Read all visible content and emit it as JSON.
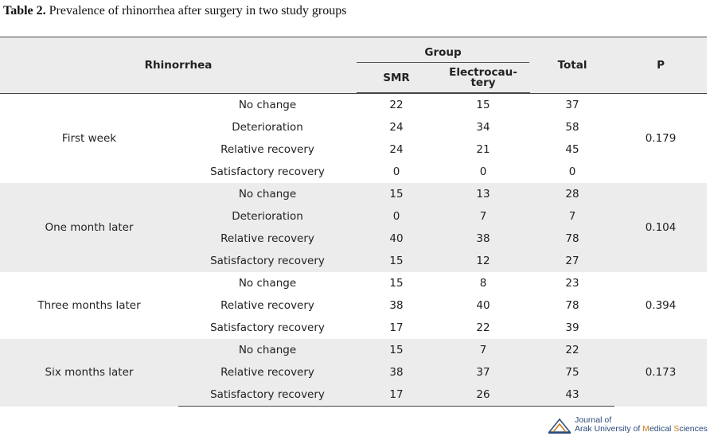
{
  "caption": {
    "label": "Table 2.",
    "text": "Prevalence of rhinorrhea after surgery in two study groups"
  },
  "header": {
    "rhinorrhea": "Rhinorrhea",
    "group": "Group",
    "smr": "SMR",
    "electro_line1": "Electrocau-",
    "electro_line2": "tery",
    "total": "Total",
    "p": "P"
  },
  "sections": [
    {
      "label": "First week",
      "p": "0.179",
      "rows": [
        {
          "status": "No change",
          "smr": "22",
          "electro": "15",
          "total": "37"
        },
        {
          "status": "Deterioration",
          "smr": "24",
          "electro": "34",
          "total": "58"
        },
        {
          "status": "Relative recovery",
          "smr": "24",
          "electro": "21",
          "total": "45"
        },
        {
          "status": "Satisfactory recovery",
          "smr": "0",
          "electro": "0",
          "total": "0"
        }
      ]
    },
    {
      "label": "One month later",
      "p": "0.104",
      "rows": [
        {
          "status": "No change",
          "smr": "15",
          "electro": "13",
          "total": "28"
        },
        {
          "status": "Deterioration",
          "smr": "0",
          "electro": "7",
          "total": "7"
        },
        {
          "status": "Relative recovery",
          "smr": "40",
          "electro": "38",
          "total": "78"
        },
        {
          "status": "Satisfactory recovery",
          "smr": "15",
          "electro": "12",
          "total": "27"
        }
      ]
    },
    {
      "label": "Three months later",
      "p": "0.394",
      "rows": [
        {
          "status": "No change",
          "smr": "15",
          "electro": "8",
          "total": "23"
        },
        {
          "status": "Relative recovery",
          "smr": "38",
          "electro": "40",
          "total": "78"
        },
        {
          "status": "Satisfactory recovery",
          "smr": "17",
          "electro": "22",
          "total": "39"
        }
      ]
    },
    {
      "label": "Six months later",
      "p": "0.173",
      "rows": [
        {
          "status": "No change",
          "smr": "15",
          "electro": "7",
          "total": "22"
        },
        {
          "status": "Relative recovery",
          "smr": "38",
          "electro": "37",
          "total": "75"
        },
        {
          "status": "Satisfactory recovery",
          "smr": "17",
          "electro": "26",
          "total": "43"
        }
      ]
    }
  ],
  "footer": {
    "journal_line1": "Journal of",
    "journal_line2_a": "Arak University of ",
    "journal_line2_b": "M",
    "journal_line2_c": "edical ",
    "journal_line2_d": "S",
    "journal_line2_e": "ciences"
  }
}
